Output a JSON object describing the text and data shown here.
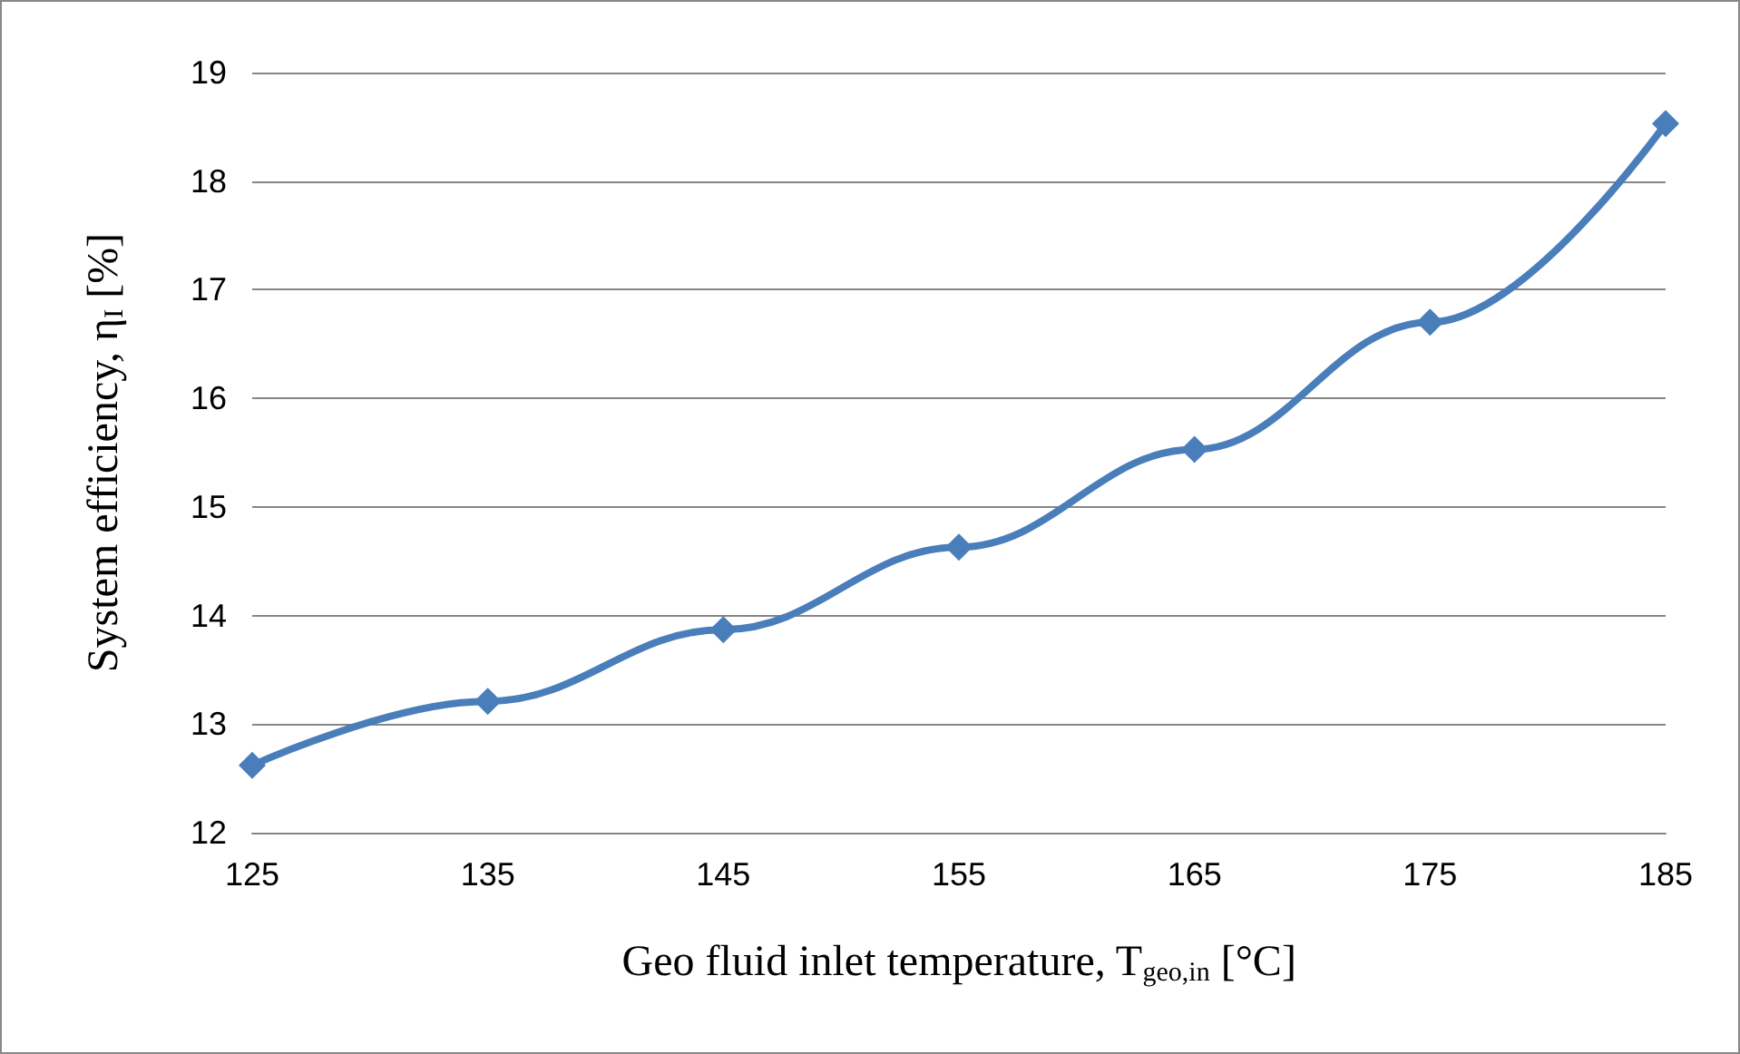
{
  "chart_data": {
    "type": "line",
    "xlabel": "Geo fluid inlet temperature, T$_{geo,in}$ [°C]",
    "ylabel": "System efficiency, η$_{I}$ [%]",
    "x": [
      125,
      135,
      145,
      155,
      165,
      175,
      185
    ],
    "series": [
      {
        "color": "#4a7ebb",
        "values": [
          12.62,
          13.21,
          13.87,
          14.63,
          15.53,
          16.7,
          18.53
        ]
      }
    ],
    "xlim": [
      125,
      185
    ],
    "xticks": [
      125,
      135,
      145,
      155,
      165,
      175,
      185
    ],
    "ylim": [
      12,
      19
    ],
    "yticks": [
      12,
      13,
      14,
      15,
      16,
      17,
      18,
      19
    ],
    "grid": "y",
    "legend": false,
    "marker": "diamond",
    "line_style": "solid"
  }
}
